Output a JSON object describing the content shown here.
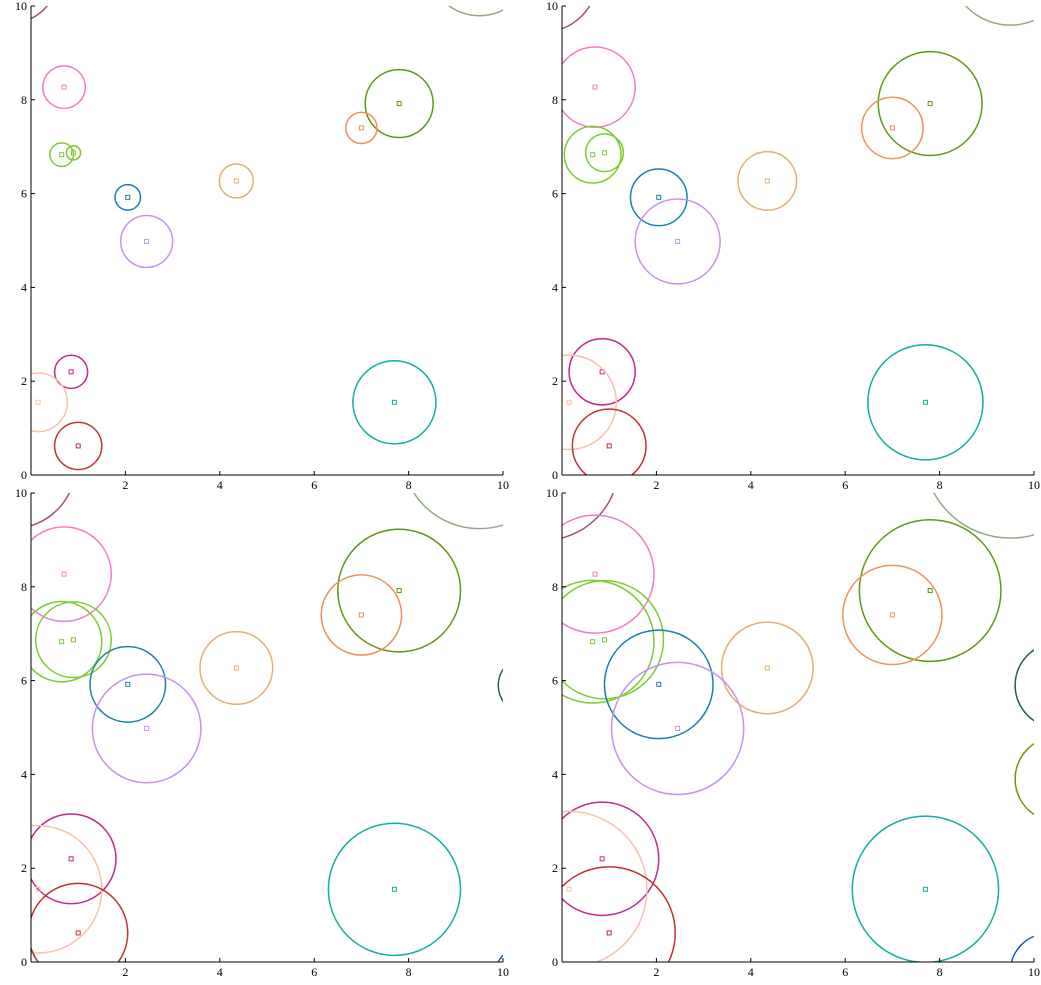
{
  "chart_data": [
    {
      "type": "bubble",
      "xlim": [
        0,
        10
      ],
      "ylim": [
        0,
        10
      ],
      "xticks": [
        2,
        4,
        6,
        8,
        10
      ],
      "yticks": [
        0,
        2,
        4,
        6,
        8,
        10
      ],
      "points": [
        {
          "x": -0.4,
          "y": 10.6,
          "r": 0.95,
          "color": "#a05080"
        },
        {
          "x": 9.5,
          "y": 10.9,
          "r": 1.1,
          "color": "#8faa80"
        },
        {
          "x": 0.7,
          "y": 8.27,
          "r": 0.45,
          "color": "#f07cc8"
        },
        {
          "x": 0.65,
          "y": 6.83,
          "r": 0.25,
          "color": "#7ccc30"
        },
        {
          "x": 0.9,
          "y": 6.87,
          "r": 0.15,
          "color": "#7ccc30"
        },
        {
          "x": 7.8,
          "y": 7.92,
          "r": 0.72,
          "color": "#5c9a10"
        },
        {
          "x": 7.0,
          "y": 7.4,
          "r": 0.33,
          "color": "#f0905a"
        },
        {
          "x": 4.35,
          "y": 6.27,
          "r": 0.36,
          "color": "#e0b070"
        },
        {
          "x": 2.05,
          "y": 5.92,
          "r": 0.27,
          "color": "#1580b0"
        },
        {
          "x": 2.45,
          "y": 4.98,
          "r": 0.55,
          "color": "#c890f0"
        },
        {
          "x": 0.85,
          "y": 2.2,
          "r": 0.35,
          "color": "#c02890"
        },
        {
          "x": 0.15,
          "y": 1.55,
          "r": 0.62,
          "color": "#f8c0a8"
        },
        {
          "x": 7.7,
          "y": 1.55,
          "r": 0.88,
          "color": "#10b0a0"
        },
        {
          "x": 1.0,
          "y": 0.62,
          "r": 0.5,
          "color": "#c03030"
        }
      ]
    },
    {
      "type": "bubble",
      "xlim": [
        0,
        10
      ],
      "ylim": [
        0,
        10
      ],
      "xticks": [
        2,
        4,
        6,
        8,
        10
      ],
      "yticks": [
        0,
        2,
        4,
        6,
        8,
        10
      ],
      "points": [
        {
          "x": -0.4,
          "y": 10.6,
          "r": 1.15,
          "color": "#a05080"
        },
        {
          "x": 9.5,
          "y": 10.9,
          "r": 1.3,
          "color": "#8faa80"
        },
        {
          "x": 0.7,
          "y": 8.27,
          "r": 0.85,
          "color": "#f07cc8"
        },
        {
          "x": 0.65,
          "y": 6.83,
          "r": 0.6,
          "color": "#7ccc30"
        },
        {
          "x": 0.9,
          "y": 6.87,
          "r": 0.4,
          "color": "#7ccc30"
        },
        {
          "x": 7.8,
          "y": 7.92,
          "r": 1.1,
          "color": "#5c9a10"
        },
        {
          "x": 7.0,
          "y": 7.4,
          "r": 0.65,
          "color": "#f0905a"
        },
        {
          "x": 4.35,
          "y": 6.27,
          "r": 0.62,
          "color": "#e0b070"
        },
        {
          "x": 2.05,
          "y": 5.92,
          "r": 0.6,
          "color": "#1580b0"
        },
        {
          "x": 2.45,
          "y": 4.98,
          "r": 0.9,
          "color": "#c890f0"
        },
        {
          "x": 0.85,
          "y": 2.2,
          "r": 0.7,
          "color": "#c02890"
        },
        {
          "x": 0.15,
          "y": 1.55,
          "r": 1.0,
          "color": "#f8c0a8"
        },
        {
          "x": 7.7,
          "y": 1.55,
          "r": 1.22,
          "color": "#10b0a0"
        },
        {
          "x": 1.0,
          "y": 0.62,
          "r": 0.78,
          "color": "#c03030"
        }
      ]
    },
    {
      "type": "bubble",
      "xlim": [
        0,
        10
      ],
      "ylim": [
        0,
        10
      ],
      "xticks": [
        2,
        4,
        6,
        8,
        10
      ],
      "yticks": [
        0,
        2,
        4,
        6,
        8,
        10
      ],
      "points": [
        {
          "x": -0.4,
          "y": 10.6,
          "r": 1.35,
          "color": "#a05080"
        },
        {
          "x": 9.5,
          "y": 10.9,
          "r": 1.65,
          "color": "#8faa80"
        },
        {
          "x": 0.7,
          "y": 8.27,
          "r": 1.0,
          "color": "#f07cc8"
        },
        {
          "x": 0.65,
          "y": 6.83,
          "r": 0.85,
          "color": "#7ccc30"
        },
        {
          "x": 0.9,
          "y": 6.87,
          "r": 0.8,
          "color": "#7ccc30"
        },
        {
          "x": 7.8,
          "y": 7.92,
          "r": 1.3,
          "color": "#5c9a10"
        },
        {
          "x": 7.0,
          "y": 7.4,
          "r": 0.85,
          "color": "#f0905a"
        },
        {
          "x": 4.35,
          "y": 6.27,
          "r": 0.77,
          "color": "#e0b070"
        },
        {
          "x": 2.05,
          "y": 5.92,
          "r": 0.8,
          "color": "#1580b0"
        },
        {
          "x": 2.45,
          "y": 4.98,
          "r": 1.15,
          "color": "#c890f0"
        },
        {
          "x": 0.85,
          "y": 2.2,
          "r": 0.95,
          "color": "#c02890"
        },
        {
          "x": 0.15,
          "y": 1.55,
          "r": 1.35,
          "color": "#f8c0a8"
        },
        {
          "x": 7.7,
          "y": 1.55,
          "r": 1.4,
          "color": "#10b0a0"
        },
        {
          "x": 1.0,
          "y": 0.62,
          "r": 1.05,
          "color": "#c03030"
        },
        {
          "x": 10.5,
          "y": 5.9,
          "r": 0.6,
          "color": "#1a6050"
        },
        {
          "x": 10.3,
          "y": -0.2,
          "r": 0.45,
          "color": "#1050c0"
        }
      ]
    },
    {
      "type": "bubble",
      "xlim": [
        0,
        10
      ],
      "ylim": [
        0,
        10
      ],
      "xticks": [
        2,
        4,
        6,
        8,
        10
      ],
      "yticks": [
        0,
        2,
        4,
        6,
        8,
        10
      ],
      "points": [
        {
          "x": -0.4,
          "y": 10.6,
          "r": 1.6,
          "color": "#a05080"
        },
        {
          "x": 9.5,
          "y": 10.9,
          "r": 1.85,
          "color": "#8faa80"
        },
        {
          "x": 0.7,
          "y": 8.27,
          "r": 1.25,
          "color": "#f07cc8"
        },
        {
          "x": 0.65,
          "y": 6.83,
          "r": 1.3,
          "color": "#7ccc30"
        },
        {
          "x": 0.9,
          "y": 6.87,
          "r": 1.25,
          "color": "#7ccc30"
        },
        {
          "x": 7.8,
          "y": 7.92,
          "r": 1.5,
          "color": "#5c9a10"
        },
        {
          "x": 7.0,
          "y": 7.4,
          "r": 1.05,
          "color": "#f0905a"
        },
        {
          "x": 4.35,
          "y": 6.27,
          "r": 0.97,
          "color": "#e0b070"
        },
        {
          "x": 2.05,
          "y": 5.92,
          "r": 1.15,
          "color": "#1580b0"
        },
        {
          "x": 2.45,
          "y": 4.98,
          "r": 1.4,
          "color": "#c890f0"
        },
        {
          "x": 0.85,
          "y": 2.2,
          "r": 1.2,
          "color": "#c02890"
        },
        {
          "x": 0.15,
          "y": 1.55,
          "r": 1.65,
          "color": "#f8c0a8"
        },
        {
          "x": 7.7,
          "y": 1.55,
          "r": 1.55,
          "color": "#10b0a0"
        },
        {
          "x": 1.0,
          "y": 0.62,
          "r": 1.4,
          "color": "#c03030"
        },
        {
          "x": 10.5,
          "y": 5.9,
          "r": 0.9,
          "color": "#1a6050"
        },
        {
          "x": 10.3,
          "y": -0.2,
          "r": 0.8,
          "color": "#1050c0"
        },
        {
          "x": 10.5,
          "y": 3.9,
          "r": 0.9,
          "color": "#8a8a00"
        }
      ]
    }
  ]
}
